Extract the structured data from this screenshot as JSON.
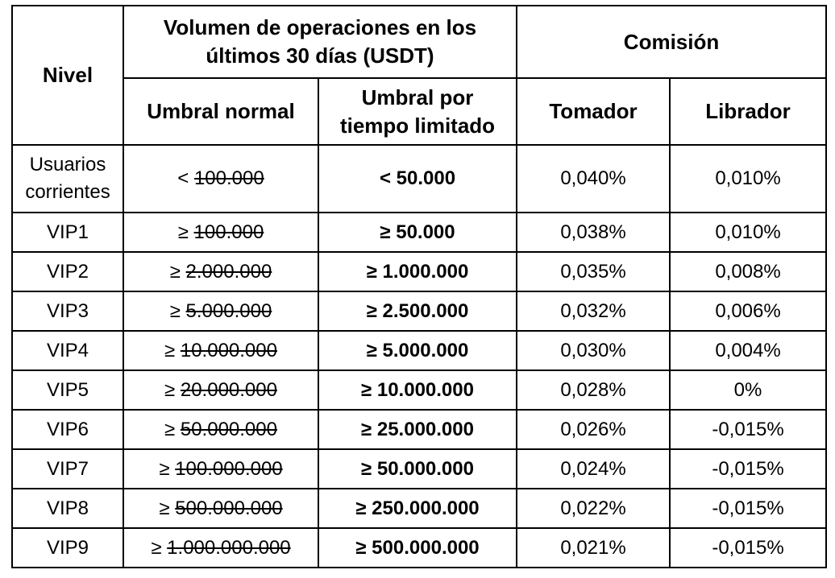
{
  "headers": {
    "level": "Nivel",
    "volume_group_line1": "Volumen de operaciones en los",
    "volume_group_line2": "últimos 30 días (USDT)",
    "commission_group": "Comisión",
    "normal_threshold": "Umbral normal",
    "limited_threshold_line1": "Umbral por",
    "limited_threshold_line2": "tiempo limitado",
    "taker": "Tomador",
    "maker": "Librador"
  },
  "rows": [
    {
      "level_line1": "Usuarios",
      "level_line2": "corrientes",
      "normal_op": "< ",
      "normal_value": "100.000",
      "limited": "< 50.000",
      "taker": "0,040%",
      "maker": "0,010%"
    },
    {
      "level_line1": "VIP1",
      "level_line2": "",
      "normal_op": "≥ ",
      "normal_value": "100.000",
      "limited": "≥ 50.000",
      "taker": "0,038%",
      "maker": "0,010%"
    },
    {
      "level_line1": "VIP2",
      "level_line2": "",
      "normal_op": "≥ ",
      "normal_value": "2.000.000",
      "limited": "≥ 1.000.000",
      "taker": "0,035%",
      "maker": "0,008%"
    },
    {
      "level_line1": "VIP3",
      "level_line2": "",
      "normal_op": "≥ ",
      "normal_value": "5.000.000",
      "limited": "≥ 2.500.000",
      "taker": "0,032%",
      "maker": "0,006%"
    },
    {
      "level_line1": "VIP4",
      "level_line2": "",
      "normal_op": "≥ ",
      "normal_value": "10.000.000",
      "limited": "≥ 5.000.000",
      "taker": "0,030%",
      "maker": "0,004%"
    },
    {
      "level_line1": "VIP5",
      "level_line2": "",
      "normal_op": "≥ ",
      "normal_value": "20.000.000",
      "limited": "≥ 10.000.000",
      "taker": "0,028%",
      "maker": "0%"
    },
    {
      "level_line1": "VIP6",
      "level_line2": "",
      "normal_op": "≥ ",
      "normal_value": "50.000.000",
      "limited": "≥ 25.000.000",
      "taker": "0,026%",
      "maker": "-0,015%"
    },
    {
      "level_line1": "VIP7",
      "level_line2": "",
      "normal_op": "≥ ",
      "normal_value": "100.000.000",
      "limited": "≥ 50.000.000",
      "taker": "0,024%",
      "maker": "-0,015%"
    },
    {
      "level_line1": "VIP8",
      "level_line2": "",
      "normal_op": "≥ ",
      "normal_value": "500.000.000",
      "limited": "≥ 250.000.000",
      "taker": "0,022%",
      "maker": "-0,015%"
    },
    {
      "level_line1": "VIP9",
      "level_line2": "",
      "normal_op": "≥ ",
      "normal_value": "1.000.000.000",
      "limited": "≥ 500.000.000",
      "taker": "0,021%",
      "maker": "-0,015%"
    }
  ]
}
